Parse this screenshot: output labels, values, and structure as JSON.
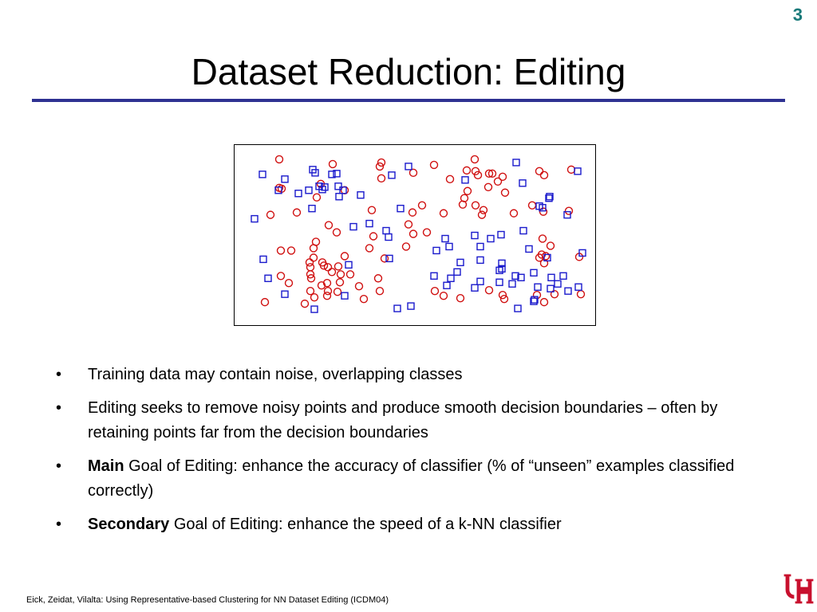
{
  "slide": {
    "number": "3",
    "title": "Dataset Reduction: Editing",
    "colors": {
      "rule": "#2e3192",
      "slide_number": "#1a7a7a",
      "class_circle": "#d01010",
      "class_square": "#1a1acc",
      "logo": "#c8102e"
    }
  },
  "chart_data": {
    "type": "scatter",
    "title": "",
    "xlabel": "",
    "ylabel": "",
    "xlim": [
      0,
      450
    ],
    "ylim": [
      0,
      225
    ],
    "grid": false,
    "series": [
      {
        "marker": "circle",
        "color": "#d01010",
        "points": [
          [
            54,
            16
          ],
          [
            121,
            22
          ],
          [
            182,
            20
          ],
          [
            248,
            23
          ],
          [
            299,
            16
          ],
          [
            54,
            52
          ],
          [
            180,
            25
          ],
          [
            182,
            40
          ],
          [
            222,
            33
          ],
          [
            268,
            41
          ],
          [
            289,
            30
          ],
          [
            300,
            31
          ],
          [
            303,
            36
          ],
          [
            317,
            34
          ],
          [
            321,
            34
          ],
          [
            328,
            44
          ],
          [
            334,
            38
          ],
          [
            380,
            31
          ],
          [
            386,
            36
          ],
          [
            420,
            29
          ],
          [
            57,
            53
          ],
          [
            106,
            47
          ],
          [
            136,
            55
          ],
          [
            101,
            64
          ],
          [
            170,
            80
          ],
          [
            221,
            83
          ],
          [
            233,
            74
          ],
          [
            260,
            84
          ],
          [
            284,
            73
          ],
          [
            290,
            56
          ],
          [
            286,
            65
          ],
          [
            300,
            74
          ],
          [
            310,
            80
          ],
          [
            316,
            51
          ],
          [
            308,
            86
          ],
          [
            337,
            58
          ],
          [
            348,
            84
          ],
          [
            371,
            74
          ],
          [
            385,
            82
          ],
          [
            417,
            81
          ],
          [
            43,
            86
          ],
          [
            76,
            83
          ],
          [
            116,
            99
          ],
          [
            126,
            108
          ],
          [
            222,
            110
          ],
          [
            239,
            108
          ],
          [
            216,
            98
          ],
          [
            172,
            113
          ],
          [
            186,
            141
          ],
          [
            213,
            126
          ],
          [
            100,
            120
          ],
          [
            97,
            128
          ],
          [
            108,
            146
          ],
          [
            93,
            152
          ],
          [
            93,
            161
          ],
          [
            110,
            150
          ],
          [
            115,
            152
          ],
          [
            128,
            151
          ],
          [
            120,
            158
          ],
          [
            131,
            161
          ],
          [
            130,
            171
          ],
          [
            143,
            161
          ],
          [
            127,
            183
          ],
          [
            114,
            188
          ],
          [
            98,
            190
          ],
          [
            86,
            198
          ],
          [
            114,
            172
          ],
          [
            154,
            176
          ],
          [
            160,
            192
          ],
          [
            167,
            128
          ],
          [
            178,
            166
          ],
          [
            56,
            163
          ],
          [
            66,
            172
          ],
          [
            36,
            196
          ],
          [
            93,
            182
          ],
          [
            107,
            175
          ],
          [
            94,
            166
          ],
          [
            56,
            131
          ],
          [
            69,
            131
          ],
          [
            97,
            140
          ],
          [
            92,
            146
          ],
          [
            136,
            138
          ],
          [
            115,
            182
          ],
          [
            180,
            182
          ],
          [
            249,
            182
          ],
          [
            260,
            188
          ],
          [
            281,
            191
          ],
          [
            317,
            181
          ],
          [
            334,
            187
          ],
          [
            377,
            187
          ],
          [
            386,
            196
          ],
          [
            399,
            186
          ],
          [
            432,
            186
          ],
          [
            336,
            192
          ],
          [
            384,
            116
          ],
          [
            383,
            136
          ],
          [
            380,
            140
          ],
          [
            386,
            147
          ],
          [
            430,
            139
          ],
          [
            394,
            125
          ],
          [
            388,
            138
          ]
        ]
      },
      {
        "marker": "square",
        "color": "#1a1acc",
        "points": [
          [
            33,
            35
          ],
          [
            61,
            41
          ],
          [
            53,
            55
          ],
          [
            78,
            59
          ],
          [
            91,
            55
          ],
          [
            96,
            29
          ],
          [
            99,
            33
          ],
          [
            104,
            50
          ],
          [
            108,
            54
          ],
          [
            111,
            51
          ],
          [
            128,
            50
          ],
          [
            126,
            34
          ],
          [
            120,
            35
          ],
          [
            134,
            55
          ],
          [
            129,
            63
          ],
          [
            156,
            61
          ],
          [
            195,
            36
          ],
          [
            216,
            25
          ],
          [
            287,
            42
          ],
          [
            351,
            20
          ],
          [
            359,
            46
          ],
          [
            392,
            65
          ],
          [
            428,
            31
          ],
          [
            23,
            91
          ],
          [
            95,
            78
          ],
          [
            147,
            101
          ],
          [
            167,
            97
          ],
          [
            188,
            106
          ],
          [
            191,
            114
          ],
          [
            206,
            78
          ],
          [
            267,
            126
          ],
          [
            251,
            131
          ],
          [
            262,
            116
          ],
          [
            299,
            112
          ],
          [
            319,
            116
          ],
          [
            306,
            126
          ],
          [
            332,
            111
          ],
          [
            360,
            106
          ],
          [
            380,
            75
          ],
          [
            384,
            77
          ],
          [
            393,
            63
          ],
          [
            415,
            86
          ],
          [
            306,
            170
          ],
          [
            299,
            178
          ],
          [
            277,
            158
          ],
          [
            269,
            166
          ],
          [
            264,
            175
          ],
          [
            248,
            163
          ],
          [
            219,
            201
          ],
          [
            202,
            204
          ],
          [
            98,
            205
          ],
          [
            136,
            188
          ],
          [
            61,
            186
          ],
          [
            40,
            166
          ],
          [
            34,
            142
          ],
          [
            192,
            141
          ],
          [
            141,
            149
          ],
          [
            281,
            146
          ],
          [
            306,
            143
          ],
          [
            330,
            156
          ],
          [
            330,
            171
          ],
          [
            346,
            173
          ],
          [
            350,
            163
          ],
          [
            357,
            165
          ],
          [
            373,
            159
          ],
          [
            378,
            177
          ],
          [
            394,
            179
          ],
          [
            395,
            165
          ],
          [
            403,
            173
          ],
          [
            410,
            163
          ],
          [
            416,
            182
          ],
          [
            429,
            177
          ],
          [
            434,
            134
          ],
          [
            390,
            140
          ],
          [
            374,
            193
          ],
          [
            353,
            204
          ],
          [
            373,
            195
          ],
          [
            367,
            129
          ],
          [
            333,
            154
          ],
          [
            333,
            147
          ]
        ]
      }
    ]
  },
  "bullets": [
    {
      "bold": "",
      "text": "Training data may contain noise, overlapping classes"
    },
    {
      "bold": "",
      "text": "Editing seeks to remove noisy points and produce smooth decision boundaries – often by retaining points far from the decision boundaries"
    },
    {
      "bold": "Main",
      "text": " Goal of Editing: enhance the accuracy of classifier (% of “unseen” examples classified correctly)"
    },
    {
      "bold": "Secondary",
      "text": " Goal of Editing: enhance the speed of a k-NN classifier"
    }
  ],
  "bullet_marker": "•",
  "footer": "Eick, Zeidat, Vilalta: Using Representative-based Clustering for NN Dataset Editing (ICDM04)",
  "logo": {
    "icon": "uh-logo-icon"
  }
}
